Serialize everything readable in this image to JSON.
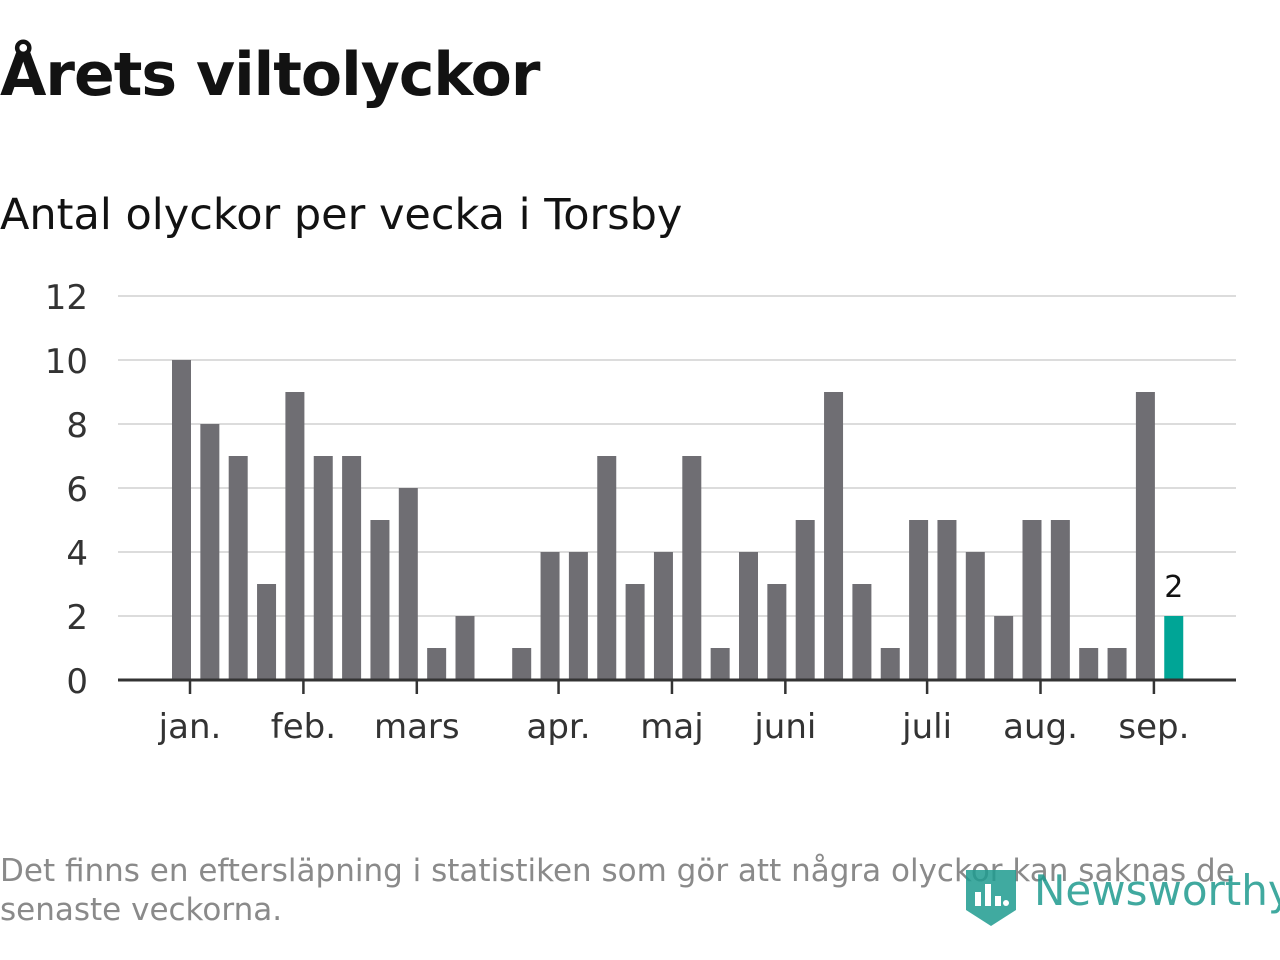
{
  "title": "Årets viltolyckor",
  "subtitle": "Antal olyckor per vecka i Torsby",
  "note": "Det finns en eftersläpning i statistiken som gör att några olyckor kan saknas de senaste veckorna.",
  "brand": {
    "name": "Newsworthy",
    "icon": "bar-chart-badge-icon",
    "color": "#1f9b8f"
  },
  "colors": {
    "bar": "#6f6e73",
    "highlight": "#00a596",
    "grid": "#dcdcdc",
    "axis": "#333333"
  },
  "chart_data": {
    "type": "bar",
    "title": "Antal olyckor per vecka i Torsby",
    "xlabel": "",
    "ylabel": "",
    "ylim": [
      0,
      12
    ],
    "yticks": [
      0,
      2,
      4,
      6,
      8,
      10,
      12
    ],
    "grid": true,
    "values": [
      10,
      8,
      7,
      3,
      9,
      7,
      7,
      5,
      6,
      1,
      2,
      0,
      1,
      4,
      4,
      7,
      3,
      4,
      7,
      1,
      4,
      3,
      5,
      9,
      3,
      1,
      5,
      5,
      4,
      2,
      5,
      5,
      1,
      1,
      9,
      2
    ],
    "highlight_index": 35,
    "highlight_label": "2",
    "month_labels": [
      {
        "label": "jan.",
        "week_index": 0.3
      },
      {
        "label": "feb.",
        "week_index": 4.3
      },
      {
        "label": "mars",
        "week_index": 8.3
      },
      {
        "label": "apr.",
        "week_index": 13.3
      },
      {
        "label": "maj",
        "week_index": 17.3
      },
      {
        "label": "juni",
        "week_index": 21.3
      },
      {
        "label": "juli",
        "week_index": 26.3
      },
      {
        "label": "aug.",
        "week_index": 30.3
      },
      {
        "label": "sep.",
        "week_index": 34.3
      }
    ]
  }
}
